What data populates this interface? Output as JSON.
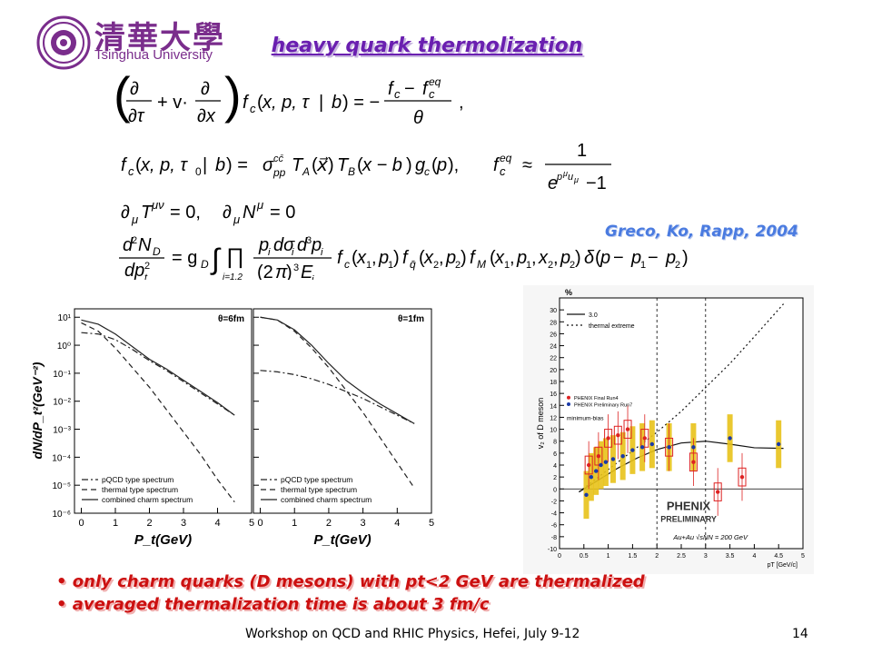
{
  "header": {
    "logo_cn": "清華大學",
    "logo_en": "Tsinghua University",
    "title": "heavy quark thermolization"
  },
  "equations": [
    "(∂/∂τ + v·∂/∂x) f_c(x,p,τ|b) = −(f_c − f_c^eq)/θ ,",
    "f_c(x,p,τ0|b) = σ_pp^cc̄ T_A(x) T_B(x−b) g_c(p),",
    "f_c^eq ≈ 1/(e^{p^μ u_μ} − 1)",
    "∂_μ T^μν = 0,   ∂_μ N^μ = 0",
    "d²N_D/dp_t² = g_D ∫ Π_{i=1,2} p_i dσ_i d³p_i /((2π)³ E_i) f_c(x1,p1) f_q̄(x2,p2) f_M(x1,p1,x2,p2) δ(p − p1 − p2)"
  ],
  "reference": "Greco, Ko, Rapp, 2004",
  "bullets": [
    "only charm quarks (D mesons) with pt<2 GeV are thermalized",
    "averaged thermalization time is about 3 fm/c"
  ],
  "footer": {
    "text": "Workshop on QCD and RHIC Physics,  Hefei,  July 9-12",
    "page": "14"
  },
  "chart_data": [
    {
      "type": "line",
      "panel_label": "θ=6fm",
      "ylabel": "dN/dP_t²(GeV⁻²)",
      "xlabel": "P_t(GeV)",
      "xlim": [
        -0.2,
        5
      ],
      "ylim_log10": [
        -6,
        1.3
      ],
      "log_y": true,
      "x_ticks": [
        "0",
        "1",
        "2",
        "3",
        "4",
        "5"
      ],
      "y_ticks": [
        "10¹",
        "10⁰",
        "10⁻¹",
        "10⁻²",
        "10⁻³",
        "10⁻⁴",
        "10⁻⁵",
        "10⁻⁶"
      ],
      "legend": [
        "pQCD type spectrum",
        "thermal type spectrum",
        "combined charm spectrum"
      ],
      "legend_placement": "bottom",
      "series": [
        {
          "name": "pQCD type spectrum",
          "style": "dashdot",
          "x": [
            0,
            0.5,
            1,
            1.5,
            2,
            2.5,
            3,
            3.5,
            4,
            4.5
          ],
          "log10y": [
            0.45,
            0.4,
            0.2,
            -0.15,
            -0.55,
            -0.9,
            -1.3,
            -1.7,
            -2.1,
            -2.5
          ]
        },
        {
          "name": "thermal type spectrum",
          "style": "dashed",
          "x": [
            0,
            0.5,
            1,
            1.5,
            2,
            2.5,
            3,
            3.5,
            4,
            4.5
          ],
          "log10y": [
            0.8,
            0.5,
            -0.1,
            -0.8,
            -1.5,
            -2.3,
            -3.1,
            -3.9,
            -4.8,
            -5.6
          ]
        },
        {
          "name": "combined charm spectrum",
          "style": "solid",
          "x": [
            0,
            0.5,
            1,
            1.5,
            2,
            2.5,
            3,
            3.5,
            4,
            4.5
          ],
          "log10y": [
            0.9,
            0.75,
            0.4,
            -0.05,
            -0.5,
            -0.85,
            -1.25,
            -1.65,
            -2.05,
            -2.5
          ]
        }
      ]
    },
    {
      "type": "line",
      "panel_label": "θ=1fm",
      "xlabel": "P_t(GeV)",
      "xlim": [
        -0.2,
        5
      ],
      "ylim_log10": [
        -6,
        1.3
      ],
      "log_y": true,
      "x_ticks": [
        "0",
        "1",
        "2",
        "3",
        "4",
        "5"
      ],
      "legend": [
        "pQCD type spectrum",
        "thermal type spectrum",
        "combined charm spectrum"
      ],
      "legend_placement": "bottom",
      "series": [
        {
          "name": "pQCD type spectrum",
          "style": "dashdot",
          "x": [
            0,
            0.5,
            1,
            1.5,
            2,
            2.5,
            3,
            3.5,
            4,
            4.5
          ],
          "log10y": [
            -0.9,
            -0.95,
            -1.05,
            -1.2,
            -1.4,
            -1.65,
            -1.9,
            -2.2,
            -2.5,
            -2.8
          ]
        },
        {
          "name": "thermal type spectrum",
          "style": "dashed",
          "x": [
            0,
            0.5,
            1,
            1.5,
            2,
            2.5,
            3,
            3.5,
            4,
            4.5
          ],
          "log10y": [
            1.0,
            0.9,
            0.5,
            -0.1,
            -0.8,
            -1.6,
            -2.4,
            -3.3,
            -4.2,
            -5.1
          ]
        },
        {
          "name": "combined charm spectrum",
          "style": "solid",
          "x": [
            0,
            0.5,
            1,
            1.5,
            2,
            2.5,
            3,
            3.5,
            4,
            4.5
          ],
          "log10y": [
            1.0,
            0.9,
            0.55,
            0.0,
            -0.65,
            -1.25,
            -1.7,
            -2.1,
            -2.45,
            -2.8
          ]
        }
      ]
    },
    {
      "type": "scatter",
      "ylabel": "v₂ of D meson",
      "y_unit": "%",
      "xlabel": "pT [GeV/c]",
      "xlim": [
        0,
        5
      ],
      "ylim": [
        -10,
        32
      ],
      "x_ticks": [
        "0",
        "0.5",
        "1",
        "1.5",
        "2",
        "2.5",
        "3",
        "3.5",
        "4",
        "4.5",
        "5"
      ],
      "y_ticks": [
        "-10",
        "-8",
        "-6",
        "-4",
        "-2",
        "0",
        "2",
        "4",
        "6",
        "8",
        "10",
        "12",
        "14",
        "16",
        "18",
        "20",
        "22",
        "24",
        "26",
        "28",
        "30"
      ],
      "vlines": [
        2,
        3
      ],
      "legend": [
        "3.0",
        "thermal extreme",
        "PHENIX Final Run4",
        "PHENIX Preliminary Run7"
      ],
      "annotations": [
        "minimum-bias",
        "PHENIX",
        "PRELIMINARY",
        "Au+Au √sNN = 200 GeV"
      ],
      "series": [
        {
          "name": "3.0",
          "style": "solid",
          "x": [
            0.4,
            0.8,
            1.2,
            1.6,
            2.0,
            2.5,
            3.0,
            3.5,
            4.0,
            4.6
          ],
          "y": [
            -0.5,
            1.5,
            3.5,
            5.2,
            6.6,
            7.7,
            8.0,
            7.5,
            6.9,
            6.8
          ]
        },
        {
          "name": "thermal extreme",
          "style": "dotted",
          "x": [
            0.4,
            0.8,
            1.2,
            1.6,
            2.0,
            2.5,
            3.0,
            3.5,
            4.0,
            4.6
          ],
          "y": [
            -0.5,
            2.0,
            4.5,
            7.0,
            9.5,
            13.0,
            17.0,
            21.0,
            25.5,
            31.0
          ]
        },
        {
          "name": "PHENIX Final Run4",
          "marker": "red",
          "x": [
            0.6,
            0.8,
            1.0,
            1.2,
            1.4,
            1.75,
            2.25,
            2.75,
            3.25,
            3.75
          ],
          "y": [
            4.0,
            5.5,
            8.5,
            9.0,
            10.0,
            8.5,
            7.0,
            4.5,
            -0.5,
            2.0
          ]
        },
        {
          "name": "PHENIX Preliminary Run7",
          "marker": "blue",
          "x": [
            0.55,
            0.65,
            0.75,
            0.85,
            0.95,
            1.1,
            1.3,
            1.5,
            1.7,
            1.9,
            2.25,
            2.75,
            3.5,
            4.5
          ],
          "y": [
            -1.0,
            2.0,
            3.0,
            4.0,
            4.5,
            5.0,
            5.5,
            6.5,
            7.0,
            7.5,
            7.0,
            7.0,
            8.5,
            7.5
          ]
        }
      ]
    }
  ]
}
